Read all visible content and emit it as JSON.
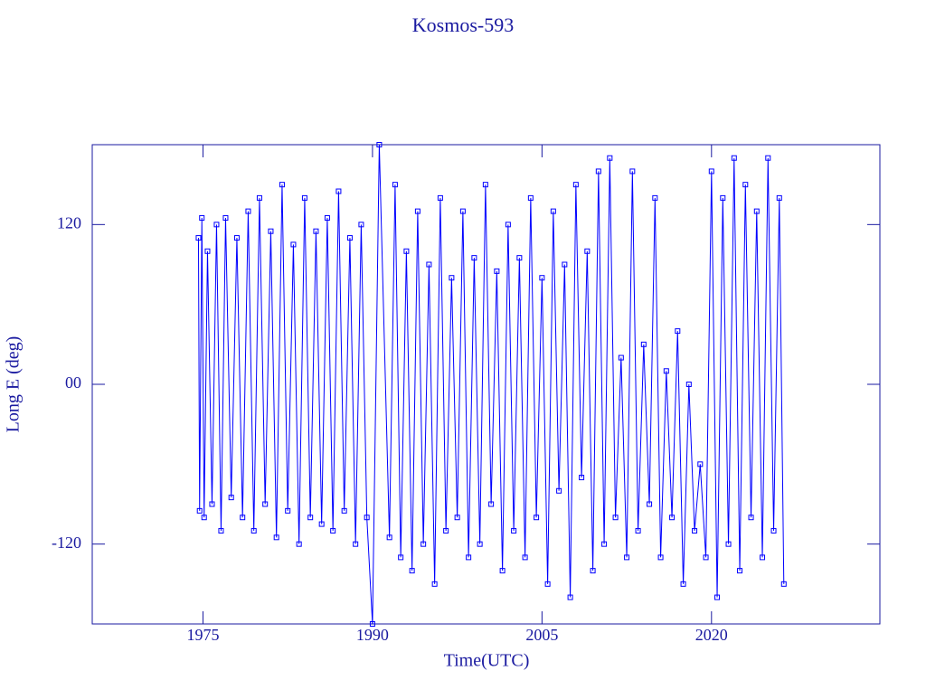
{
  "chart_data": {
    "type": "line",
    "title": "Kosmos-593",
    "x_label": "Time(UTC)",
    "y_label": "Long E (deg)",
    "color": "#0000ff",
    "markers": true,
    "xlim": [
      1965.2,
      2034.9
    ],
    "ylim": [
      -180,
      180
    ],
    "xticks": [
      1975,
      1990,
      2005,
      2020
    ],
    "yticks": [
      -120,
      {
        "value": 0,
        "label": "00"
      },
      120
    ],
    "x": [
      1974.6,
      1974.7,
      1974.9,
      1975.1,
      1975.4,
      1975.8,
      1976.2,
      1976.6,
      1977.0,
      1977.5,
      1978.0,
      1978.5,
      1979.0,
      1979.5,
      1980.0,
      1980.5,
      1981.0,
      1981.5,
      1982.0,
      1982.5,
      1983.0,
      1983.5,
      1984.0,
      1984.5,
      1985.0,
      1985.5,
      1986.0,
      1986.5,
      1987.0,
      1987.5,
      1988.0,
      1988.5,
      1989.0,
      1989.5,
      1990.0,
      1990.6,
      1991.5,
      1992.0,
      1992.5,
      1993.0,
      1993.5,
      1994.0,
      1994.5,
      1995.0,
      1995.5,
      1996.0,
      1996.5,
      1997.0,
      1997.5,
      1998.0,
      1998.5,
      1999.0,
      1999.5,
      2000.0,
      2000.5,
      2001.0,
      2001.5,
      2002.0,
      2002.5,
      2003.0,
      2003.5,
      2004.0,
      2004.5,
      2005.0,
      2005.5,
      2006.0,
      2006.5,
      2007.0,
      2007.5,
      2008.0,
      2008.5,
      2009.0,
      2009.5,
      2010.0,
      2010.5,
      2011.0,
      2011.5,
      2012.0,
      2012.5,
      2013.0,
      2013.5,
      2014.0,
      2014.5,
      2015.0,
      2015.5,
      2016.0,
      2016.5,
      2017.0,
      2017.5,
      2018.0,
      2018.5,
      2019.0,
      2019.5,
      2020.0,
      2020.5,
      2021.0,
      2021.5,
      2022.0,
      2022.5,
      2023.0,
      2023.5,
      2024.0,
      2024.5,
      2025.0,
      2025.5,
      2026.0,
      2026.4
    ],
    "values": [
      110,
      -95,
      125,
      -100,
      100,
      -90,
      120,
      -110,
      125,
      -85,
      110,
      -100,
      130,
      -110,
      140,
      -90,
      115,
      -115,
      150,
      -95,
      105,
      -120,
      140,
      -100,
      115,
      -105,
      125,
      -110,
      145,
      -95,
      110,
      -120,
      120,
      -100,
      -180,
      180,
      -115,
      150,
      -130,
      100,
      -140,
      130,
      -120,
      90,
      -150,
      140,
      -110,
      80,
      -100,
      130,
      -130,
      95,
      -120,
      150,
      -90,
      85,
      -140,
      120,
      -110,
      95,
      -130,
      140,
      -100,
      80,
      -150,
      130,
      -80,
      90,
      -160,
      150,
      -70,
      100,
      -140,
      160,
      -120,
      170,
      -100,
      20,
      -130,
      160,
      -110,
      30,
      -90,
      140,
      -130,
      10,
      -100,
      40,
      -150,
      0,
      -110,
      -60,
      -130,
      160,
      -160,
      140,
      -120,
      170,
      -140,
      150,
      -100,
      130,
      -130,
      170,
      -110,
      140,
      -150
    ]
  }
}
